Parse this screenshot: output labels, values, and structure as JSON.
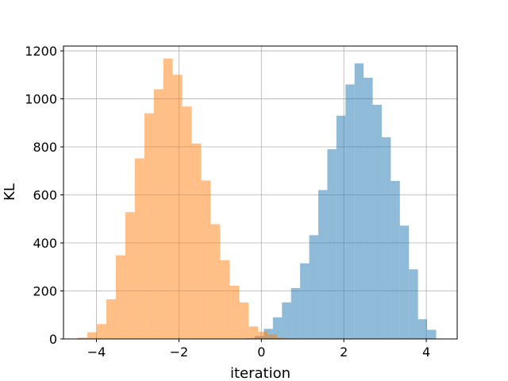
{
  "chart_data": {
    "type": "bar",
    "title": "",
    "xlabel": "iteration",
    "ylabel": "KL",
    "xlim": [
      -4.8,
      4.75
    ],
    "ylim": [
      0,
      1220
    ],
    "grid": true,
    "x_ticks": [
      -4,
      -2,
      0,
      2,
      4
    ],
    "x_tick_labels": [
      "−4",
      "−2",
      "0",
      "2",
      "4"
    ],
    "y_ticks": [
      0,
      200,
      400,
      600,
      800,
      1000,
      1200
    ],
    "y_tick_labels": [
      "0",
      "200",
      "400",
      "600",
      "800",
      "1000",
      "1200"
    ],
    "series": [
      {
        "color": "#1f77b4",
        "opacity": 0.5,
        "bin_edges": [
          -0.38,
          -0.16,
          0.06,
          0.28,
          0.5,
          0.72,
          0.94,
          1.16,
          1.38,
          1.6,
          1.82,
          2.04,
          2.26,
          2.48,
          2.7,
          2.92,
          3.14,
          3.36,
          3.58,
          3.8,
          4.02,
          4.24
        ],
        "counts": [
          3,
          12,
          42,
          90,
          152,
          212,
          315,
          432,
          620,
          790,
          930,
          1060,
          1148,
          1088,
          975,
          840,
          658,
          472,
          290,
          82,
          38
        ]
      },
      {
        "color": "#ff7f0e",
        "opacity": 0.5,
        "bin_edges": [
          -4.45,
          -4.22,
          -3.99,
          -3.76,
          -3.53,
          -3.3,
          -3.07,
          -2.84,
          -2.61,
          -2.38,
          -2.15,
          -1.92,
          -1.69,
          -1.46,
          -1.23,
          -1.0,
          -0.77,
          -0.54,
          -0.31,
          -0.08,
          0.15,
          0.38,
          0.61
        ],
        "counts": [
          5,
          28,
          62,
          165,
          348,
          528,
          752,
          940,
          1040,
          1168,
          1100,
          968,
          814,
          660,
          478,
          328,
          222,
          152,
          52,
          30,
          18,
          5
        ]
      }
    ]
  }
}
